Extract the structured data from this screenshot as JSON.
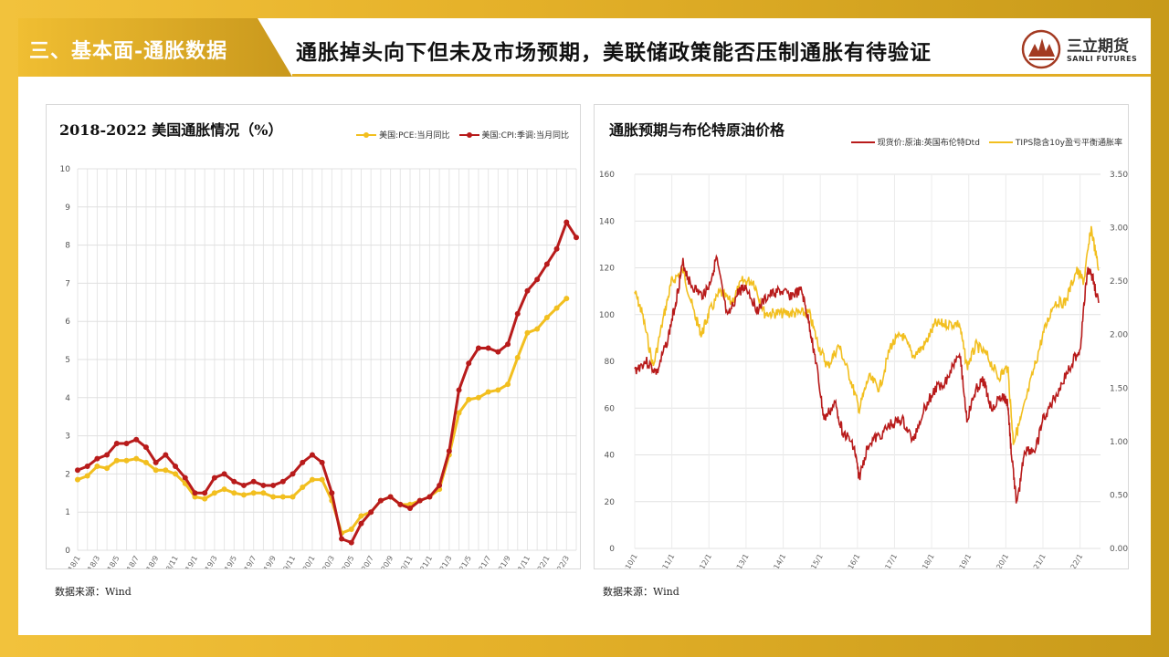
{
  "header": {
    "section": "三、基本面-通胀数据",
    "headline": "通胀掉头向下但未及市场预期，美联储政策能否压制通胀有待验证",
    "logo_name": "三立期货",
    "logo_sub": "SANLI FUTURES"
  },
  "left_chart": {
    "title": "2018-2022 美国通胀情况（%）",
    "source": "数据来源：Wind"
  },
  "right_chart": {
    "title": "通胀预期与布伦特原油价格",
    "source": "数据来源：Wind"
  },
  "colors": {
    "pce": "#f2bf1f",
    "cpi": "#b81b1b",
    "brent": "#b81b1b",
    "tips": "#f2bf1f",
    "accent": "#e2ad25"
  },
  "chart_data": [
    {
      "type": "line",
      "title": "2018-2022 美国通胀情况（%）",
      "ylim": [
        0,
        10
      ],
      "yticks": [
        0,
        1,
        2,
        3,
        4,
        5,
        6,
        7,
        8,
        9,
        10
      ],
      "xtick_labels": [
        "2018/1",
        "2018/3",
        "2018/5",
        "2018/7",
        "2018/9",
        "2018/11",
        "2019/1",
        "2019/3",
        "2019/5",
        "2019/7",
        "2019/9",
        "2019/11",
        "2020/1",
        "2020/3",
        "2020/5",
        "2020/7",
        "2020/9",
        "2020/11",
        "2021/1",
        "2021/3",
        "2021/5",
        "2021/7",
        "2021/9",
        "2021/11",
        "2022/1",
        "2022/3"
      ],
      "legend_position": "top-right",
      "grid": true,
      "series": [
        {
          "name": "美国:PCE:当月同比",
          "color": "#f2bf1f",
          "values": [
            1.85,
            1.95,
            2.2,
            2.15,
            2.35,
            2.35,
            2.4,
            2.3,
            2.1,
            2.1,
            2.0,
            1.75,
            1.4,
            1.35,
            1.5,
            1.6,
            1.5,
            1.45,
            1.5,
            1.5,
            1.4,
            1.4,
            1.4,
            1.65,
            1.85,
            1.85,
            1.3,
            0.45,
            0.55,
            0.9,
            1.0,
            1.3,
            1.4,
            1.2,
            1.2,
            1.3,
            1.4,
            1.6,
            2.5,
            3.6,
            3.95,
            4.0,
            4.15,
            4.2,
            4.35,
            5.05,
            5.7,
            5.8,
            6.1,
            6.35,
            6.6
          ]
        },
        {
          "name": "美国:CPI:季调:当月同比",
          "color": "#b81b1b",
          "values": [
            2.1,
            2.2,
            2.4,
            2.5,
            2.8,
            2.8,
            2.9,
            2.7,
            2.3,
            2.5,
            2.2,
            1.9,
            1.5,
            1.5,
            1.9,
            2.0,
            1.8,
            1.7,
            1.8,
            1.7,
            1.7,
            1.8,
            2.0,
            2.3,
            2.5,
            2.3,
            1.5,
            0.3,
            0.2,
            0.7,
            1.0,
            1.3,
            1.4,
            1.2,
            1.1,
            1.3,
            1.4,
            1.7,
            2.6,
            4.2,
            4.9,
            5.3,
            5.3,
            5.2,
            5.4,
            6.2,
            6.8,
            7.1,
            7.5,
            7.9,
            8.6,
            8.2
          ]
        }
      ]
    },
    {
      "type": "line",
      "title": "通胀预期与布伦特原油价格",
      "y_left_lim": [
        0,
        160
      ],
      "y_left_ticks": [
        0,
        20,
        40,
        60,
        80,
        100,
        120,
        140,
        160
      ],
      "y_right_lim": [
        0,
        3.5
      ],
      "y_right_ticks": [
        "0.00",
        "0.50",
        "1.00",
        "1.50",
        "2.00",
        "2.50",
        "3.00",
        "3.50"
      ],
      "xtick_labels": [
        "2010/1",
        "2011/1",
        "2012/1",
        "2013/1",
        "2014/1",
        "2015/1",
        "2016/1",
        "2017/1",
        "2018/1",
        "2019/1",
        "2020/1",
        "2021/1",
        "2022/1"
      ],
      "legend_position": "top-right",
      "grid": true,
      "series": [
        {
          "name": "现货价:原油:英国布伦特Dtd",
          "axis": "left",
          "color": "#b81b1b",
          "x": [
            2010.0,
            2010.3,
            2010.6,
            2010.9,
            2011.1,
            2011.3,
            2011.5,
            2011.8,
            2012.0,
            2012.2,
            2012.5,
            2012.8,
            2013.0,
            2013.3,
            2013.6,
            2013.9,
            2014.2,
            2014.5,
            2014.7,
            2014.9,
            2015.1,
            2015.4,
            2015.6,
            2015.9,
            2016.05,
            2016.3,
            2016.6,
            2016.9,
            2017.2,
            2017.5,
            2017.8,
            2018.1,
            2018.4,
            2018.75,
            2018.95,
            2019.2,
            2019.4,
            2019.6,
            2019.9,
            2020.05,
            2020.15,
            2020.3,
            2020.5,
            2020.8,
            2021.0,
            2021.3,
            2021.5,
            2021.8,
            2022.0,
            2022.2,
            2022.35,
            2022.5
          ],
          "values": [
            76,
            80,
            75,
            90,
            105,
            122,
            113,
            108,
            112,
            124,
            98,
            110,
            112,
            102,
            108,
            110,
            108,
            110,
            96,
            78,
            55,
            62,
            50,
            44,
            30,
            45,
            48,
            53,
            55,
            46,
            60,
            68,
            72,
            85,
            55,
            68,
            72,
            60,
            65,
            62,
            40,
            18,
            42,
            42,
            55,
            64,
            70,
            80,
            85,
            120,
            115,
            105
          ]
        },
        {
          "name": "TIPS隐含10y盈亏平衡通胀率",
          "axis": "right",
          "color": "#f2bf1f",
          "x": [
            2010.0,
            2010.2,
            2010.5,
            2010.8,
            2011.0,
            2011.3,
            2011.6,
            2011.8,
            2012.0,
            2012.3,
            2012.6,
            2012.9,
            2013.2,
            2013.5,
            2013.8,
            2014.1,
            2014.4,
            2014.7,
            2014.95,
            2015.2,
            2015.5,
            2015.8,
            2016.05,
            2016.3,
            2016.6,
            2016.9,
            2017.2,
            2017.5,
            2017.8,
            2018.1,
            2018.4,
            2018.75,
            2018.95,
            2019.2,
            2019.5,
            2019.8,
            2020.05,
            2020.2,
            2020.4,
            2020.7,
            2021.0,
            2021.3,
            2021.6,
            2021.9,
            2022.1,
            2022.3,
            2022.5
          ],
          "values": [
            2.4,
            2.2,
            1.7,
            2.2,
            2.5,
            2.6,
            2.2,
            2.0,
            2.2,
            2.4,
            2.3,
            2.5,
            2.5,
            2.2,
            2.2,
            2.2,
            2.2,
            2.2,
            1.9,
            1.7,
            1.9,
            1.6,
            1.3,
            1.6,
            1.5,
            1.9,
            2.0,
            1.8,
            1.9,
            2.1,
            2.1,
            2.1,
            1.7,
            1.9,
            1.8,
            1.6,
            1.7,
            1.0,
            1.2,
            1.6,
            2.0,
            2.3,
            2.3,
            2.6,
            2.5,
            3.0,
            2.6
          ]
        }
      ]
    }
  ]
}
